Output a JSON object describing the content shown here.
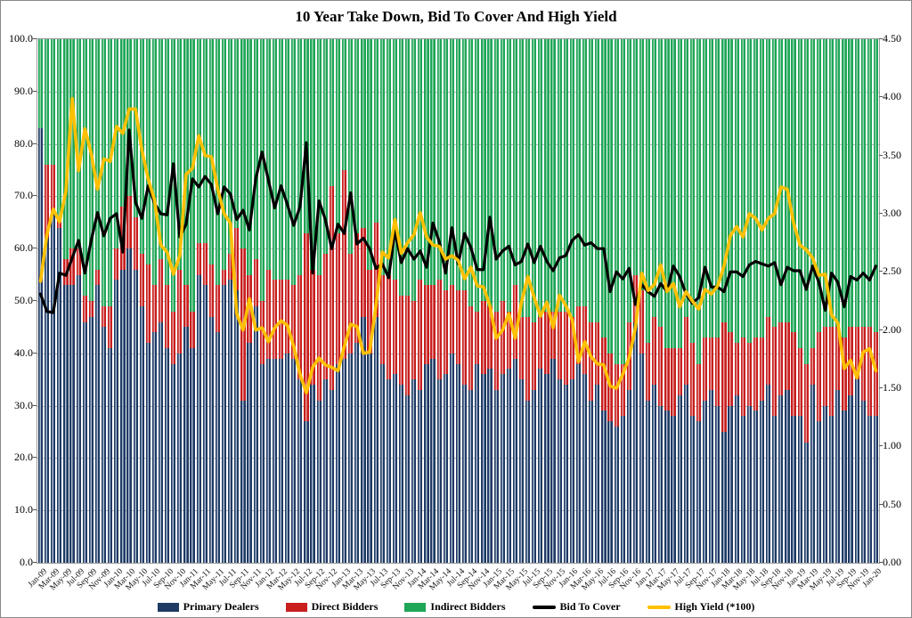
{
  "title": "10 Year Take Down, Bid To Cover And High Yield",
  "left_axis": {
    "labels": [
      "100.0",
      "90.0",
      "80.0",
      "70.0",
      "60.0",
      "50.0",
      "40.0",
      "30.0",
      "20.0",
      "10.0",
      "0.0"
    ],
    "min": 0,
    "max": 100
  },
  "right_axis": {
    "labels": [
      "4.50",
      "4.00",
      "3.50",
      "3.00",
      "2.50",
      "2.00",
      "1.50",
      "1.00",
      "0.50",
      "0.00"
    ],
    "min": 0,
    "max": 4.5
  },
  "legend": [
    {
      "label": "Primary Dealers",
      "color": "#1f3a63",
      "type": "bar"
    },
    {
      "label": "Direct Bidders",
      "color": "#c81e1e",
      "type": "bar"
    },
    {
      "label": "Indirect Bidders",
      "color": "#1ea657",
      "type": "bar"
    },
    {
      "label": "Bid To Cover",
      "color": "#000000",
      "type": "line"
    },
    {
      "label": "High Yield (*100)",
      "color": "#ffc000",
      "type": "line"
    }
  ],
  "chart_data": {
    "type": "combo-stacked-bar-and-lines",
    "months_start": "Jan-09",
    "months_end": "Jan-20",
    "x_tick_labels": [
      "Jan-09",
      "Mar-09",
      "May-09",
      "Jul-09",
      "Sep-09",
      "Nov-09",
      "Jan-10",
      "Mar-10",
      "May-10",
      "Jul-10",
      "Sep-10",
      "Nov-10",
      "Jan-11",
      "Mar-11",
      "May-11",
      "Jul-11",
      "Sep-11",
      "Nov-11",
      "Jan-12",
      "Mar-12",
      "May-12",
      "Jul-12",
      "Sep-12",
      "Nov-12",
      "Jan-13",
      "Mar-13",
      "May-13",
      "Jul-13",
      "Sep-13",
      "Nov-13",
      "Jan-14",
      "Mar-14",
      "May-14",
      "Jul-14",
      "Sep-14",
      "Nov-14",
      "Jan-15",
      "Mar-15",
      "May-15",
      "Jul-15",
      "Sep-15",
      "Nov-15",
      "Jan-16",
      "Mar-16",
      "May-16",
      "Jul-16",
      "Sep-16",
      "Nov-16",
      "Jan-17",
      "Mar-17",
      "May-17",
      "Jul-17",
      "Sep-17",
      "Nov-17",
      "Jan-18",
      "Mar-18",
      "May-18",
      "Jul-18",
      "Sep-18",
      "Nov-18",
      "Jan-19",
      "Mar-19",
      "May-19",
      "Jul-19",
      "Sep-19",
      "Nov-19",
      "Jan-20"
    ],
    "tick_every_months": 2,
    "stacked_bars_left_axis_pct": {
      "primary_dealers": [
        83,
        62,
        67,
        64,
        53,
        53,
        55,
        46,
        47,
        53,
        45,
        41,
        54,
        56,
        60,
        56,
        49,
        42,
        44,
        46,
        41,
        38,
        40,
        45,
        41,
        55,
        53,
        47,
        44,
        53,
        54,
        52,
        31,
        42,
        49,
        38,
        39,
        39,
        39,
        40,
        39,
        35,
        27,
        34,
        31,
        35,
        33,
        38,
        39,
        40,
        42,
        47,
        40,
        47,
        38,
        35,
        36,
        34,
        32,
        35,
        33,
        38,
        39,
        35,
        36,
        40,
        38,
        34,
        33,
        38,
        36,
        37,
        33,
        36,
        37,
        39,
        35,
        31,
        33,
        37,
        36,
        39,
        35,
        34,
        35,
        38,
        36,
        31,
        34,
        29,
        27,
        26,
        28,
        33,
        46,
        40,
        31,
        34,
        30,
        29,
        28,
        32,
        34,
        28,
        27,
        31,
        33,
        30,
        25,
        30,
        32,
        28,
        30,
        29,
        31,
        34,
        28,
        32,
        33,
        28,
        28,
        23,
        34,
        27,
        30,
        28,
        33,
        29,
        32,
        35,
        31,
        28,
        28
      ],
      "direct_bidders": [
        0,
        14,
        9,
        2,
        5,
        7,
        5,
        5,
        3,
        3,
        4,
        8,
        6,
        12,
        10,
        10,
        10,
        15,
        9,
        12,
        12,
        10,
        16,
        8,
        7,
        6,
        8,
        10,
        9,
        3,
        5,
        12,
        29,
        13,
        9,
        12,
        17,
        15,
        15,
        14,
        14,
        20,
        36,
        22,
        24,
        24,
        39,
        25,
        36,
        19,
        21,
        17,
        16,
        18,
        17,
        20,
        18,
        17,
        19,
        15,
        21,
        15,
        14,
        19,
        16,
        13,
        14,
        18,
        16,
        10,
        14,
        12,
        15,
        14,
        11,
        14,
        12,
        16,
        13,
        10,
        12,
        9,
        13,
        14,
        12,
        11,
        13,
        15,
        12,
        14,
        13,
        12,
        10,
        13,
        9,
        12,
        11,
        13,
        15,
        12,
        13,
        9,
        13,
        14,
        11,
        12,
        10,
        13,
        21,
        14,
        10,
        15,
        12,
        14,
        12,
        13,
        17,
        14,
        13,
        16,
        13,
        15,
        7,
        17,
        15,
        17,
        12,
        14,
        13,
        10,
        14,
        17,
        16
      ],
      "indirect_bidders_note": "indirect = 100 - primary - direct (bars stacked to 100%)"
    },
    "lines_right_axis": {
      "bid_to_cover": [
        2.31,
        2.16,
        2.15,
        2.49,
        2.47,
        2.62,
        2.77,
        2.49,
        2.77,
        3.01,
        2.81,
        2.96,
        3.0,
        2.67,
        3.72,
        3.1,
        2.96,
        3.24,
        3.09,
        3.0,
        2.99,
        3.43,
        2.8,
        2.91,
        3.3,
        3.23,
        3.32,
        3.25,
        3.0,
        3.23,
        3.17,
        2.95,
        3.03,
        2.86,
        3.3,
        3.53,
        3.29,
        3.05,
        3.24,
        3.08,
        2.9,
        3.06,
        3.61,
        2.49,
        3.11,
        2.95,
        2.7,
        2.91,
        2.83,
        3.18,
        2.74,
        2.79,
        2.7,
        2.53,
        2.57,
        2.45,
        2.86,
        2.58,
        2.7,
        2.61,
        2.68,
        2.54,
        2.92,
        2.76,
        2.49,
        2.88,
        2.57,
        2.83,
        2.71,
        2.52,
        2.52,
        2.97,
        2.61,
        2.68,
        2.72,
        2.56,
        2.59,
        2.74,
        2.58,
        2.72,
        2.59,
        2.51,
        2.62,
        2.64,
        2.77,
        2.82,
        2.73,
        2.75,
        2.7,
        2.7,
        2.33,
        2.5,
        2.44,
        2.53,
        2.22,
        2.39,
        2.33,
        2.29,
        2.4,
        2.33,
        2.55,
        2.46,
        2.31,
        2.23,
        2.28,
        2.54,
        2.37,
        2.37,
        2.33,
        2.5,
        2.5,
        2.46,
        2.56,
        2.59,
        2.57,
        2.55,
        2.58,
        2.39,
        2.54,
        2.51,
        2.51,
        2.35,
        2.55,
        2.41,
        2.17,
        2.49,
        2.41,
        2.2,
        2.46,
        2.43,
        2.49,
        2.43,
        2.55
      ],
      "high_yield_x100": [
        2.42,
        2.82,
        3.04,
        2.93,
        3.19,
        3.99,
        3.37,
        3.73,
        3.52,
        3.21,
        3.47,
        3.45,
        3.75,
        3.69,
        3.9,
        3.9,
        3.55,
        3.3,
        3.12,
        2.73,
        2.67,
        2.48,
        2.64,
        3.34,
        3.39,
        3.67,
        3.5,
        3.49,
        3.21,
        3.0,
        2.92,
        2.14,
        2.0,
        2.27,
        2.0,
        2.02,
        1.9,
        2.02,
        2.08,
        2.04,
        1.86,
        1.62,
        1.46,
        1.68,
        1.76,
        1.7,
        1.68,
        1.65,
        1.86,
        2.05,
        2.03,
        1.8,
        1.81,
        2.21,
        2.67,
        2.62,
        2.95,
        2.66,
        2.75,
        2.82,
        3.01,
        2.8,
        2.73,
        2.72,
        2.61,
        2.64,
        2.6,
        2.44,
        2.54,
        2.38,
        2.37,
        2.21,
        1.93,
        2.0,
        2.14,
        1.93,
        2.24,
        2.46,
        2.28,
        2.12,
        2.24,
        2.02,
        2.3,
        2.21,
        2.09,
        1.73,
        1.9,
        1.77,
        1.71,
        1.7,
        1.52,
        1.5,
        1.62,
        1.76,
        2.02,
        2.49,
        2.34,
        2.39,
        2.56,
        2.33,
        2.4,
        2.2,
        2.33,
        2.25,
        2.18,
        2.35,
        2.31,
        2.38,
        2.55,
        2.81,
        2.89,
        2.8,
        3.0,
        2.96,
        2.86,
        2.96,
        3.0,
        3.23,
        3.21,
        2.92,
        2.73,
        2.69,
        2.62,
        2.47,
        2.48,
        2.13,
        2.06,
        1.67,
        1.74,
        1.59,
        1.81,
        1.84,
        1.65
      ]
    },
    "colors": {
      "primary_dealers": "#1f3a63",
      "primary_dealers_stripe": "#a9b9d0",
      "direct_bidders": "#c81e1e",
      "direct_bidders_stripe": "#e89c9c",
      "indirect_bidders": "#1ea657",
      "indirect_bidders_stripe": "#93d2ab",
      "bid_to_cover": "#000000",
      "high_yield": "#ffc000",
      "gridline": "#b8b8b8"
    },
    "layout": {
      "grid": "horizontal every 10 (left axis)",
      "legend_position": "bottom-center",
      "bars_stacked_to": 100
    }
  }
}
